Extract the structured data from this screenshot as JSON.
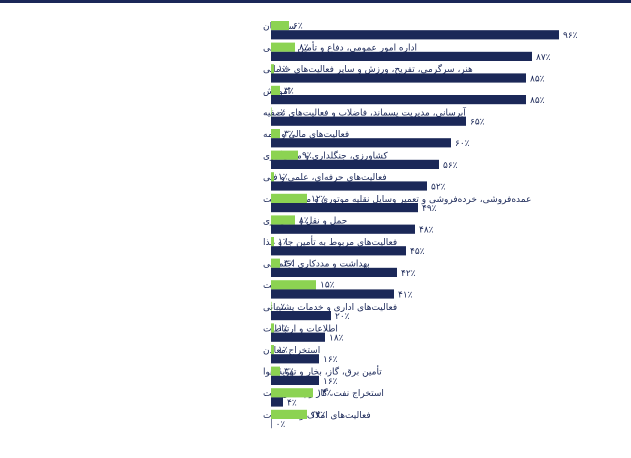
{
  "footnote": "",
  "colors": {
    "series_a": "#8cd352",
    "series_b": "#1b2858",
    "text": "#1b2858"
  },
  "chart_data": {
    "type": "bar",
    "orientation": "horizontal",
    "direction": "rtl",
    "unit": "٪",
    "xlim": [
      0,
      100
    ],
    "grid": false,
    "legend": "none",
    "categories": [
      "ساختمان",
      "اداره امور عمومی، دفاع و تأمین اجتماعی",
      "هنر، سرگرمی، تفریح، ورزش و سایر فعالیت‌های خدماتی",
      "اموزش",
      "آبرسانی، مدیریت پسماند، فاضلاب و فعالیت‌های تصفیه",
      "فعالیت‌های مالی و بیمه",
      "کشاورزی، جنگلداری و ماهی‌گیری",
      "فعالیت‌های حرفه‌ای، علمی و فنی",
      "عمده‌فروشی، خرده‌فروشی و تعمیر وسایل نقلیه موتوری و موتورسیکلت",
      "حمل و نقل و انبارداری",
      "فعالیت‌های مربوط به تأمین جا و غذا",
      "بهداشت و مددکاری اجتماعی",
      "صنعت",
      "فعالیت‌های اداری و خدمات پشتیبانی",
      "اطلاعات و ارتباطات",
      "استخراج معادن",
      "تأمین برق، گاز، بخار و تهویهٔ هوا",
      "استخراج نفت، گاز و پالایش نفت",
      "فعالیت‌های املاک و مستغلات"
    ],
    "series": [
      {
        "values": [
          6,
          8,
          1,
          3,
          0,
          3,
          9,
          1,
          12,
          8,
          1,
          3,
          15,
          0,
          1,
          1,
          3,
          14,
          12
        ]
      },
      {
        "values": [
          96,
          87,
          85,
          85,
          65,
          60,
          56,
          52,
          49,
          48,
          45,
          42,
          41,
          20,
          18,
          16,
          16,
          4,
          0
        ]
      }
    ],
    "value_labels": [
      [
        "۶٪",
        "۸٪",
        "۱٪",
        "۳٪",
        "۰٪",
        "۳٪",
        "۹٪",
        "۱٪",
        "۱۲٪",
        "۸٪",
        "۱٪",
        "۳٪",
        "۱۵٪",
        "۰٪",
        "۱٪",
        "۱٪",
        "۳٪",
        "۱۴٪",
        "۱۲٪"
      ],
      [
        "۹۶٪",
        "۸۷٪",
        "۸۵٪",
        "۸۵٪",
        "۶۵٪",
        "۶۰٪",
        "۵۶٪",
        "۵۲٪",
        "۴۹٪",
        "۴۸٪",
        "۴۵٪",
        "۴۲٪",
        "۴۱٪",
        "۲۰٪",
        "۱۸٪",
        "۱۶٪",
        "۱۶٪",
        "۴٪",
        "۰٪"
      ]
    ]
  }
}
